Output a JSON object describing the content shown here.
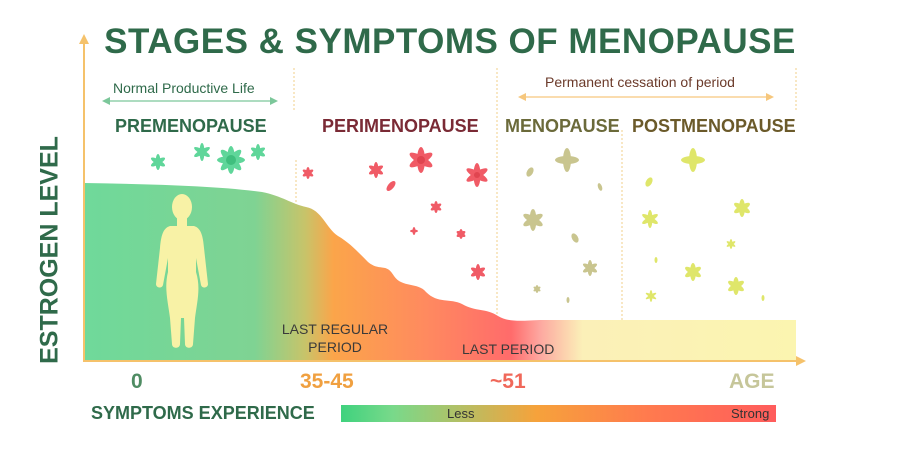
{
  "title": "STAGES & SYMPTOMS OF MENOPAUSE",
  "y_axis_label": "ESTROGEN LEVEL",
  "annotations": {
    "normal_life": "Normal Productive Life",
    "permanent_cessation": "Permanent cessation of period"
  },
  "stages": [
    {
      "label": "PREMENOPAUSE",
      "color": "#2f6a4a"
    },
    {
      "label": "PERIMENOPAUSE",
      "color": "#7a2a35"
    },
    {
      "label": "MENOPAUSE",
      "color": "#6b6a3a"
    },
    {
      "label": "POSTMENOPAUSE",
      "color": "#6b5a2a"
    }
  ],
  "events": {
    "last_regular": "LAST REGULAR\nPERIOD",
    "last_period": "LAST PERIOD"
  },
  "age_axis": [
    {
      "label": "0",
      "color": "#4f8c63"
    },
    {
      "label": "35-45",
      "color": "#f0a040"
    },
    {
      "label": "~51",
      "color": "#f0685a"
    },
    {
      "label": "AGE",
      "color": "#c6c69a"
    }
  ],
  "symptoms": {
    "label": "SYMPTOMS EXPERIENCE",
    "less": "Less",
    "strong": "Strong"
  },
  "colors": {
    "premenopause_green": "#72d898",
    "perimenopause_orange": "#f8a848",
    "perimenopause_red": "#ff6b6b",
    "postmenopause_yellow": "#fbf5b0",
    "axis": "#f5c26b"
  }
}
